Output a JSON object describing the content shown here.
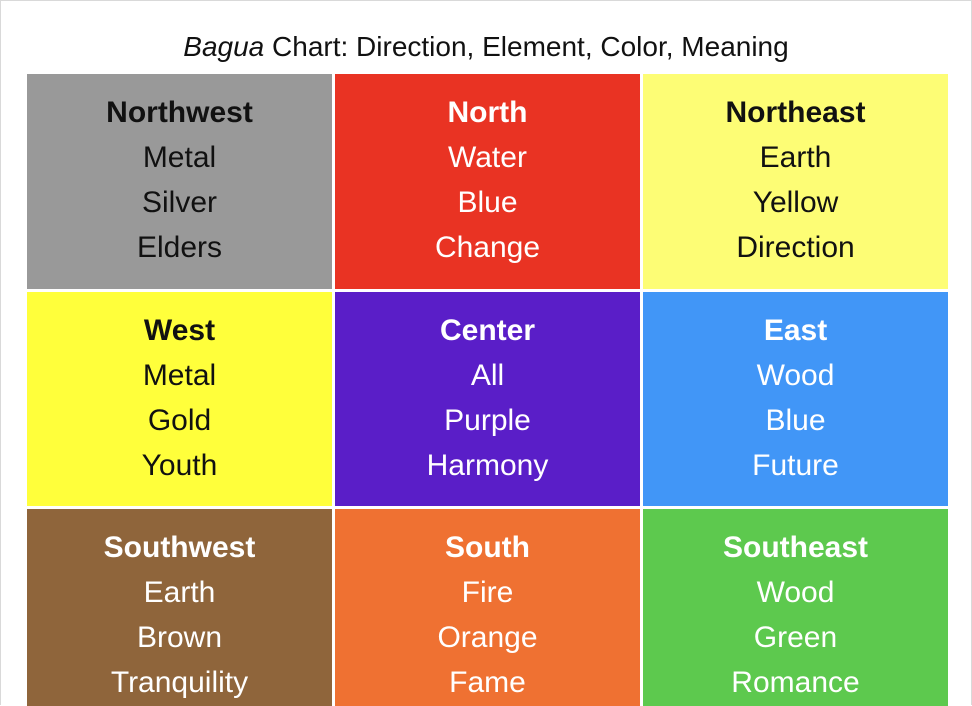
{
  "title": {
    "italic": "Bagua",
    "rest": " Chart: Direction, Element, Color, Meaning"
  },
  "cells": [
    {
      "direction": "Northwest",
      "element": "Metal",
      "color": "Silver",
      "meaning": "Elders",
      "bg": "#999999",
      "text_color": "#111111"
    },
    {
      "direction": "North",
      "element": "Water",
      "color": "Blue",
      "meaning": "Change",
      "bg": "#E93323",
      "text_color": "#ffffff"
    },
    {
      "direction": "Northeast",
      "element": "Earth",
      "color": "Yellow",
      "meaning": "Direction",
      "bg": "#FDFD75",
      "text_color": "#111111"
    },
    {
      "direction": "West",
      "element": "Metal",
      "color": "Gold",
      "meaning": "Youth",
      "bg": "#FFFF3B",
      "text_color": "#111111"
    },
    {
      "direction": "Center",
      "element": "All",
      "color": "Purple",
      "meaning": "Harmony",
      "bg": "#5A1EC8",
      "text_color": "#ffffff"
    },
    {
      "direction": "East",
      "element": "Wood",
      "color": "Blue",
      "meaning": "Future",
      "bg": "#4196F7",
      "text_color": "#ffffff"
    },
    {
      "direction": "Southwest",
      "element": "Earth",
      "color": "Brown",
      "meaning": "Tranquility",
      "bg": "#8F653B",
      "text_color": "#ffffff"
    },
    {
      "direction": "South",
      "element": "Fire",
      "color": "Orange",
      "meaning": "Fame",
      "bg": "#EF7132",
      "text_color": "#ffffff"
    },
    {
      "direction": "Southeast",
      "element": "Wood",
      "color": "Green",
      "meaning": "Romance",
      "bg": "#5DC94E",
      "text_color": "#ffffff"
    }
  ]
}
